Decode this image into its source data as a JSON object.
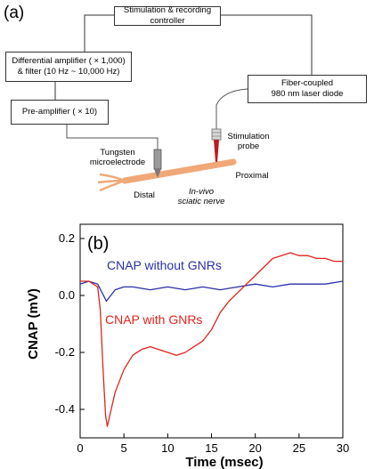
{
  "panel_a": {
    "label": "(a)",
    "boxes": {
      "controller": "Stimulation & recording controller",
      "diff_amp_line1": "Differential  amplifier ( × 1,000)",
      "diff_amp_line2": "& filter (10 Hz ~ 10,000 Hz)",
      "preamp": "Pre-amplifier ( × 10)",
      "laser_line1": "Fiber-coupled",
      "laser_line2": "980 nm laser diode"
    },
    "labels": {
      "electrode_line1": "Tungsten",
      "electrode_line2": "microelectrode",
      "probe_line1": "Stimulation",
      "probe_line2": "probe",
      "distal": "Distal",
      "proximal": "Proximal",
      "nerve_line1": "In-vivo",
      "nerve_line2": "sciatic nerve"
    },
    "colors": {
      "nerve": "#f0a878",
      "probe": "#c0181e",
      "electrode": "#8a8a8a"
    }
  },
  "panel_b": {
    "label": "(b)",
    "colors": {
      "without": "#2b2fa8",
      "with": "#e0241c"
    }
  },
  "chart_data": {
    "type": "line",
    "xlabel": "Time (msec)",
    "ylabel": "CNAP (mV)",
    "xlim": [
      0,
      30
    ],
    "ylim": [
      -0.5,
      0.25
    ],
    "xticks": [
      0,
      5,
      10,
      15,
      20,
      25,
      30
    ],
    "yticks": [
      0.2,
      0.0,
      -0.2,
      -0.4
    ],
    "ytick_labels": [
      "0.2",
      "0.0",
      "-0.2",
      "-0.4"
    ],
    "series": [
      {
        "name": "CNAP without GNRs",
        "x": [
          0,
          1,
          2,
          2.5,
          3,
          3.5,
          4,
          5,
          6,
          8,
          10,
          12,
          14,
          16,
          18,
          20,
          22,
          24,
          26,
          28,
          30
        ],
        "y": [
          0.04,
          0.05,
          0.04,
          0.01,
          -0.02,
          0.0,
          0.02,
          0.03,
          0.03,
          0.02,
          0.03,
          0.02,
          0.03,
          0.02,
          0.03,
          0.04,
          0.03,
          0.04,
          0.04,
          0.04,
          0.05
        ]
      },
      {
        "name": "CNAP with GNRs",
        "x": [
          0,
          1,
          2,
          2.3,
          2.6,
          2.9,
          3.1,
          3.4,
          4,
          5,
          6,
          7,
          8,
          9,
          10,
          11,
          12,
          13,
          14,
          15,
          16,
          17,
          18,
          19,
          20,
          21,
          22,
          23,
          24,
          25,
          26,
          27,
          28,
          29,
          30
        ],
        "y": [
          0.05,
          0.05,
          0.03,
          -0.05,
          -0.25,
          -0.42,
          -0.46,
          -0.42,
          -0.34,
          -0.26,
          -0.21,
          -0.19,
          -0.18,
          -0.19,
          -0.2,
          -0.21,
          -0.2,
          -0.18,
          -0.16,
          -0.12,
          -0.06,
          -0.02,
          0.01,
          0.04,
          0.07,
          0.1,
          0.13,
          0.14,
          0.15,
          0.14,
          0.14,
          0.13,
          0.13,
          0.12,
          0.12
        ]
      }
    ],
    "legend_placement": "inline labels",
    "grid": false
  }
}
